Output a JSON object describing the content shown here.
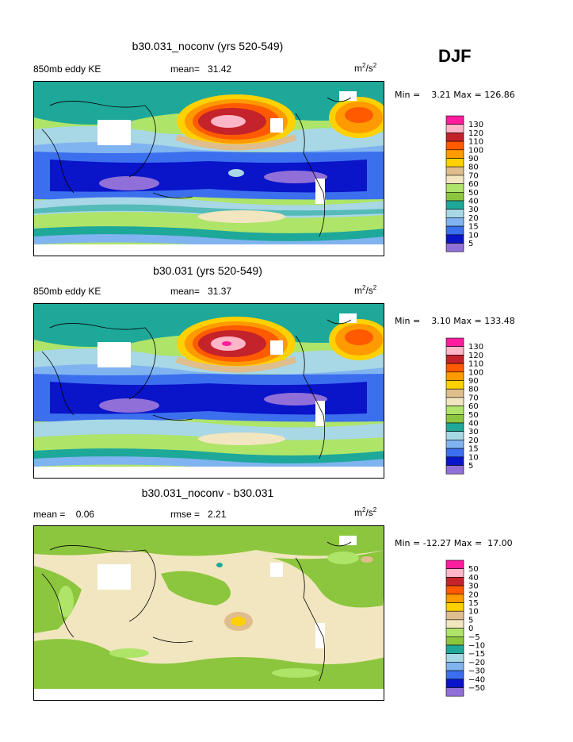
{
  "season": "DJF",
  "panels": [
    {
      "title": "b30.031_noconv (yrs 520-549)",
      "left_label": "850mb eddy KE",
      "mean_label": "mean=",
      "mean_value": "31.42",
      "units_base": "m",
      "units_mid": "/s",
      "units_exp": "2",
      "min_label": "Min =",
      "min_value": "3.21",
      "max_label": "Max =",
      "max_value": "126.86",
      "levels": [
        "130",
        "120",
        "110",
        "100",
        "90",
        "80",
        "70",
        "60",
        "50",
        "40",
        "30",
        "20",
        "15",
        "10",
        "5"
      ],
      "colors": [
        "#ff1c9e",
        "#ffb6c8",
        "#c4232b",
        "#ff5a00",
        "#ff9a00",
        "#ffd100",
        "#dfbd8c",
        "#f2e6c0",
        "#aee468",
        "#8cc63e",
        "#1ea89a",
        "#a8d7e6",
        "#80b4f0",
        "#3b6fee",
        "#0a14c8",
        "#9070d8"
      ]
    },
    {
      "title": "b30.031 (yrs 520-549)",
      "left_label": "850mb eddy KE",
      "mean_label": "mean=",
      "mean_value": "31.37",
      "units_base": "m",
      "units_mid": "/s",
      "units_exp": "2",
      "min_label": "Min =",
      "min_value": "3.10",
      "max_label": "Max =",
      "max_value": "133.48",
      "levels": [
        "130",
        "120",
        "110",
        "100",
        "90",
        "80",
        "70",
        "60",
        "50",
        "40",
        "30",
        "20",
        "15",
        "10",
        "5"
      ],
      "colors": [
        "#ff1c9e",
        "#ffb6c8",
        "#c4232b",
        "#ff5a00",
        "#ff9a00",
        "#ffd100",
        "#dfbd8c",
        "#f2e6c0",
        "#aee468",
        "#8cc63e",
        "#1ea89a",
        "#a8d7e6",
        "#80b4f0",
        "#3b6fee",
        "#0a14c8",
        "#9070d8"
      ]
    },
    {
      "title": "b30.031_noconv - b30.031",
      "left_label": "mean =",
      "mean_label": "",
      "mean_value": "0.06",
      "rmse_label": "rmse =",
      "rmse_value": "2.21",
      "units_base": "m",
      "units_mid": "/s",
      "units_exp": "2",
      "min_label": "Min =",
      "min_value": "-12.27",
      "max_label": "Max =",
      "max_value": "17.00",
      "levels": [
        "50",
        "40",
        "30",
        "20",
        "15",
        "10",
        "5",
        "0",
        "−5",
        "−10",
        "−15",
        "−20",
        "−30",
        "−40",
        "−50"
      ],
      "colors": [
        "#ff1c9e",
        "#ffb6c8",
        "#c4232b",
        "#ff5a00",
        "#ff9a00",
        "#ffd100",
        "#dfbd8c",
        "#f2e6c0",
        "#aee468",
        "#8cc63e",
        "#1ea89a",
        "#a8d7e6",
        "#80b4f0",
        "#3b6fee",
        "#0a14c8",
        "#9070d8"
      ]
    }
  ],
  "chart_data": [
    {
      "type": "heatmap",
      "title": "b30.031_noconv (yrs 520-549)",
      "variable": "850mb eddy KE",
      "units": "m2/s2",
      "mean": 31.42,
      "min": 3.21,
      "max": 126.86,
      "contour_levels": [
        5,
        10,
        15,
        20,
        30,
        40,
        50,
        60,
        70,
        80,
        90,
        100,
        110,
        120,
        130
      ]
    },
    {
      "type": "heatmap",
      "title": "b30.031 (yrs 520-549)",
      "variable": "850mb eddy KE",
      "units": "m2/s2",
      "mean": 31.37,
      "min": 3.1,
      "max": 133.48,
      "contour_levels": [
        5,
        10,
        15,
        20,
        30,
        40,
        50,
        60,
        70,
        80,
        90,
        100,
        110,
        120,
        130
      ]
    },
    {
      "type": "heatmap",
      "title": "b30.031_noconv - b30.031",
      "units": "m2/s2",
      "mean": 0.06,
      "rmse": 2.21,
      "min": -12.27,
      "max": 17.0,
      "contour_levels": [
        -50,
        -40,
        -30,
        -20,
        -15,
        -10,
        -5,
        0,
        5,
        10,
        15,
        20,
        30,
        40,
        50
      ]
    }
  ]
}
